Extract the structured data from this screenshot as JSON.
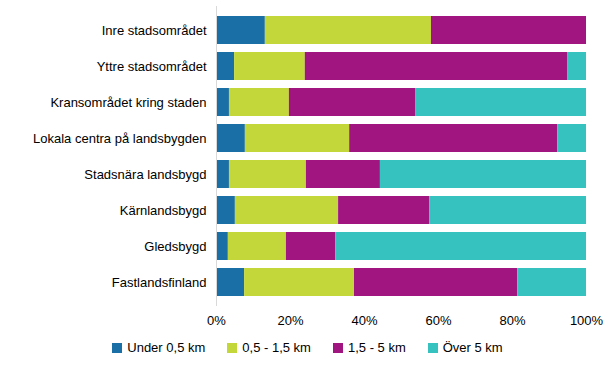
{
  "chart_data": {
    "type": "bar",
    "orientation": "horizontal",
    "stacked": true,
    "grid": false,
    "legend": "bottom",
    "categories": [
      "Inre stadsområdet",
      "Yttre stadsområdet",
      "Kransområdet kring staden",
      "Lokala centra på landsbygden",
      "Stadsnära landsbygd",
      "Kärnlandsbygd",
      "Gledsbygd",
      "Fastlandsfinland"
    ],
    "series": [
      {
        "name": "Under 0,5 km",
        "color": "#1a6fa6",
        "values": [
          13.2,
          4.9,
          3.5,
          7.8,
          3.5,
          5.1,
          3.2,
          7.6
        ]
      },
      {
        "name": "0,5 - 1,5 km",
        "color": "#c3d63a",
        "values": [
          44.9,
          19.1,
          16.2,
          28.2,
          20.8,
          27.9,
          15.7,
          29.7
        ]
      },
      {
        "name": "1,5 - 5 km",
        "color": "#a0157f",
        "values": [
          41.9,
          71.0,
          34.1,
          56.2,
          20.0,
          24.6,
          13.3,
          44.1
        ]
      },
      {
        "name": "Över 5 km",
        "color": "#36c2be",
        "values": [
          0,
          5.0,
          46.2,
          7.8,
          55.7,
          42.4,
          67.8,
          18.6
        ]
      }
    ],
    "xlim": [
      0,
      100
    ],
    "xticks": [
      {
        "value": 0,
        "label": "0%"
      },
      {
        "value": 20,
        "label": "20%"
      },
      {
        "value": 40,
        "label": "40%"
      },
      {
        "value": 60,
        "label": "60%"
      },
      {
        "value": 80,
        "label": "80%"
      },
      {
        "value": 100,
        "label": "100%"
      }
    ]
  }
}
